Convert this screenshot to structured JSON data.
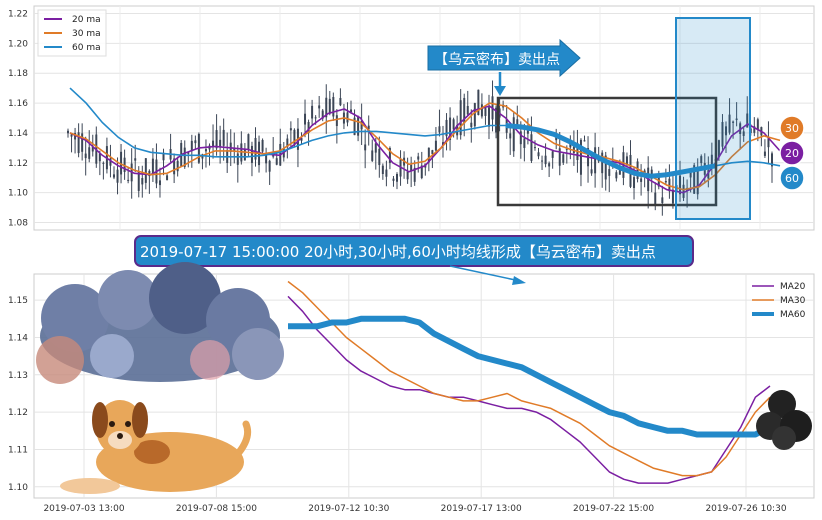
{
  "chart_data": [
    {
      "type": "candlestick",
      "ylim": [
        1.075,
        1.225
      ],
      "yticks": [
        "1.08",
        "1.10",
        "1.12",
        "1.14",
        "1.16",
        "1.18",
        "1.20",
        "1.22"
      ],
      "legend": [
        {
          "name": "20 ma",
          "color": "#7b1fa2"
        },
        {
          "name": "30 ma",
          "color": "#e07b28"
        },
        {
          "name": "60 ma",
          "color": "#2389c9"
        }
      ],
      "legend_position": "top-left",
      "grid": true,
      "callout": "【乌云密布】卖出点",
      "badges": [
        "30",
        "20",
        "60"
      ],
      "series": [
        {
          "name": "20 ma",
          "values": [
            1.14,
            1.135,
            1.125,
            1.118,
            1.113,
            1.112,
            1.118,
            1.126,
            1.13,
            1.131,
            1.13,
            1.129,
            1.126,
            1.125,
            1.133,
            1.145,
            1.153,
            1.156,
            1.15,
            1.133,
            1.12,
            1.114,
            1.118,
            1.13,
            1.145,
            1.155,
            1.158,
            1.15,
            1.138,
            1.132,
            1.128,
            1.126,
            1.124,
            1.122,
            1.12,
            1.115,
            1.108,
            1.102,
            1.1,
            1.105,
            1.12,
            1.138,
            1.146,
            1.14,
            1.128
          ]
        },
        {
          "name": "30 ma",
          "values": [
            1.14,
            1.136,
            1.128,
            1.12,
            1.115,
            1.112,
            1.113,
            1.118,
            1.124,
            1.128,
            1.128,
            1.127,
            1.126,
            1.128,
            1.135,
            1.142,
            1.148,
            1.15,
            1.147,
            1.137,
            1.126,
            1.119,
            1.121,
            1.13,
            1.142,
            1.153,
            1.16,
            1.158,
            1.15,
            1.14,
            1.133,
            1.129,
            1.126,
            1.124,
            1.121,
            1.117,
            1.111,
            1.105,
            1.102,
            1.104,
            1.112,
            1.124,
            1.134,
            1.138,
            1.135
          ]
        },
        {
          "name": "60 ma",
          "values": [
            1.17,
            1.16,
            1.147,
            1.137,
            1.13,
            1.127,
            1.126,
            1.125,
            1.125,
            1.124,
            1.124,
            1.124,
            1.125,
            1.127,
            1.131,
            1.135,
            1.138,
            1.14,
            1.141,
            1.141,
            1.14,
            1.139,
            1.138,
            1.139,
            1.141,
            1.143,
            1.145,
            1.145,
            1.144,
            1.142,
            1.139,
            1.134,
            1.128,
            1.122,
            1.117,
            1.113,
            1.111,
            1.112,
            1.114,
            1.116,
            1.118,
            1.12,
            1.121,
            1.12,
            1.118
          ]
        }
      ]
    },
    {
      "type": "line",
      "ylim": [
        1.097,
        1.157
      ],
      "yticks": [
        "1.10",
        "1.11",
        "1.12",
        "1.13",
        "1.14",
        "1.15"
      ],
      "xticks": [
        "2019-07-03 13:00",
        "2019-07-08 15:00",
        "2019-07-12 10:30",
        "2019-07-17 13:00",
        "2019-07-22 15:00",
        "2019-07-26 10:30"
      ],
      "legend": [
        {
          "name": "MA20",
          "color": "#7b1fa2"
        },
        {
          "name": "MA30",
          "color": "#e07b28"
        },
        {
          "name": "MA60",
          "color": "#2389c9"
        }
      ],
      "legend_position": "top-right",
      "grid": true,
      "banner": "2019-07-17 15:00:00 20小时,30小时,60小时均线形成【乌云密布】卖出点",
      "series": [
        {
          "name": "MA20",
          "values": [
            1.151,
            1.147,
            1.142,
            1.138,
            1.134,
            1.131,
            1.129,
            1.127,
            1.126,
            1.126,
            1.125,
            1.124,
            1.124,
            1.123,
            1.122,
            1.121,
            1.121,
            1.12,
            1.118,
            1.115,
            1.112,
            1.108,
            1.104,
            1.102,
            1.101,
            1.101,
            1.101,
            1.102,
            1.103,
            1.104,
            1.11,
            1.116,
            1.124,
            1.127
          ]
        },
        {
          "name": "MA30",
          "values": [
            1.155,
            1.152,
            1.148,
            1.144,
            1.14,
            1.137,
            1.134,
            1.131,
            1.129,
            1.127,
            1.125,
            1.124,
            1.123,
            1.123,
            1.124,
            1.125,
            1.123,
            1.122,
            1.121,
            1.119,
            1.117,
            1.114,
            1.111,
            1.109,
            1.107,
            1.105,
            1.104,
            1.103,
            1.103,
            1.104,
            1.108,
            1.114,
            1.12,
            1.124
          ]
        },
        {
          "name": "MA60",
          "values": [
            1.143,
            1.143,
            1.143,
            1.144,
            1.144,
            1.145,
            1.145,
            1.145,
            1.145,
            1.144,
            1.141,
            1.139,
            1.137,
            1.135,
            1.134,
            1.133,
            1.132,
            1.13,
            1.128,
            1.126,
            1.124,
            1.122,
            1.12,
            1.119,
            1.117,
            1.116,
            1.115,
            1.115,
            1.114,
            1.114,
            1.114,
            1.114,
            1.114,
            1.116
          ]
        }
      ]
    }
  ]
}
